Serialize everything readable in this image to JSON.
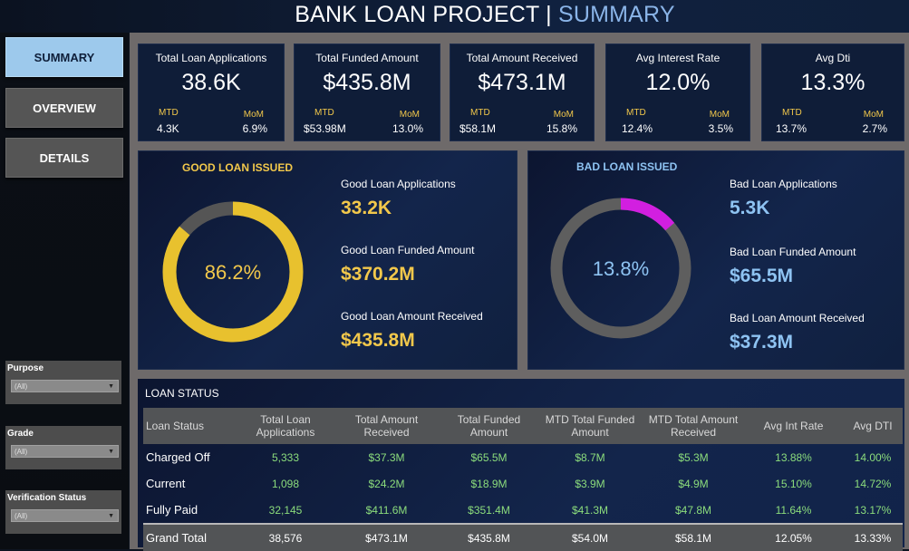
{
  "header": {
    "title_main": "BANK LOAN PROJECT | ",
    "title_sub": "SUMMARY"
  },
  "nav": [
    {
      "label": "SUMMARY",
      "active": true
    },
    {
      "label": "OVERVIEW",
      "active": false
    },
    {
      "label": "DETAILS",
      "active": false
    }
  ],
  "filters": [
    {
      "label": "Purpose",
      "value": "(All)"
    },
    {
      "label": "Grade",
      "value": "(All)"
    },
    {
      "label": "Verification Status",
      "value": "(All)"
    }
  ],
  "kpis": [
    {
      "title": "Total Loan Applications",
      "value": "38.6K",
      "mtd_label": "MTD",
      "mtd": "4.3K",
      "mom_label": "MoM",
      "mom": "6.9%"
    },
    {
      "title": "Total Funded Amount",
      "value": "$435.8M",
      "mtd_label": "MTD",
      "mtd": "$53.98M",
      "mom_label": "MoM",
      "mom": "13.0%"
    },
    {
      "title": "Total Amount Received",
      "value": "$473.1M",
      "mtd_label": "MTD",
      "mtd": "$58.1M",
      "mom_label": "MoM",
      "mom": "15.8%"
    },
    {
      "title": "Avg Interest Rate",
      "value": "12.0%",
      "mtd_label": "MTD",
      "mtd": "12.4%",
      "mom_label": "MoM",
      "mom": "3.5%"
    },
    {
      "title": "Avg Dti",
      "value": "13.3%",
      "mtd_label": "MTD",
      "mtd": "13.7%",
      "mom_label": "MoM",
      "mom": "2.7%"
    }
  ],
  "good": {
    "title": "GOOD LOAN ISSUED",
    "pct_label": "86.2%",
    "pct": 0.862,
    "color": "#e8c12e",
    "track": "#555555",
    "apps_label": "Good Loan Applications",
    "apps": "33.2K",
    "funded_label": "Good Loan Funded Amount",
    "funded": "$370.2M",
    "received_label": "Good Loan Amount Received",
    "received": "$435.8M"
  },
  "bad": {
    "title": "BAD LOAN ISSUED",
    "pct_label": "13.8%",
    "pct": 0.138,
    "color": "#d21fe0",
    "track": "#5e5e5e",
    "apps_label": "Bad Loan Applications",
    "apps": "5.3K",
    "funded_label": "Bad Loan Funded Amount",
    "funded": "$65.5M",
    "received_label": "Bad Loan Amount Received",
    "received": "$37.3M"
  },
  "status": {
    "title": "LOAN STATUS",
    "headers": [
      "Loan Status",
      "Total Loan Applications",
      "Total Amount Received",
      "Total Funded Amount",
      "MTD Total Funded Amount",
      "MTD Total Amount Received",
      "Avg Int Rate",
      "Avg DTI"
    ],
    "rows": [
      [
        "Charged Off",
        "5,333",
        "$37.3M",
        "$65.5M",
        "$8.7M",
        "$5.3M",
        "13.88%",
        "14.00%"
      ],
      [
        "Current",
        "1,098",
        "$24.2M",
        "$18.9M",
        "$3.9M",
        "$4.9M",
        "15.10%",
        "14.72%"
      ],
      [
        "Fully Paid",
        "32,145",
        "$411.6M",
        "$351.4M",
        "$41.3M",
        "$47.8M",
        "11.64%",
        "13.17%"
      ]
    ],
    "total": [
      "Grand Total",
      "38,576",
      "$473.1M",
      "$435.8M",
      "$54.0M",
      "$58.1M",
      "12.05%",
      "13.33%"
    ]
  }
}
